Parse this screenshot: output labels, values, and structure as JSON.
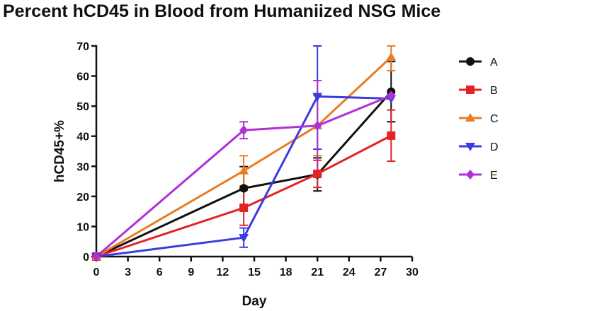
{
  "chart_data": {
    "type": "line",
    "title": "Percent hCD45 in Blood from Humaniized NSG Mice",
    "xlabel": "Day",
    "ylabel": "hCD45+%",
    "xlim": [
      0,
      30
    ],
    "ylim": [
      0,
      70
    ],
    "xticks": [
      0,
      3,
      6,
      9,
      12,
      15,
      18,
      21,
      24,
      27,
      30
    ],
    "yticks": [
      0,
      10,
      20,
      30,
      40,
      50,
      60,
      70
    ],
    "legend_position": "right",
    "series": [
      {
        "name": "A",
        "color": "#111111",
        "marker": "circle",
        "x": [
          0,
          14,
          21,
          28
        ],
        "y": [
          0,
          22.7,
          27.3,
          54.8
        ],
        "err": [
          0,
          7.2,
          5.5,
          10
        ]
      },
      {
        "name": "B",
        "color": "#e52222",
        "marker": "square",
        "x": [
          0,
          14,
          21,
          28
        ],
        "y": [
          0,
          16.2,
          27.5,
          40.2
        ],
        "err": [
          0,
          5.8,
          4.5,
          8.5
        ]
      },
      {
        "name": "C",
        "color": "#e87d23",
        "marker": "triangle-up",
        "x": [
          0,
          14,
          21,
          28
        ],
        "y": [
          0,
          28.5,
          43.5,
          66.3
        ],
        "err": [
          0,
          5,
          10,
          4.5
        ]
      },
      {
        "name": "D",
        "color": "#3a3be0",
        "marker": "triangle-down",
        "x": [
          0,
          14,
          21,
          28
        ],
        "y": [
          0,
          6.3,
          53.2,
          52.5
        ],
        "err": [
          0,
          3.2,
          17.5,
          0
        ]
      },
      {
        "name": "E",
        "color": "#b030d8",
        "marker": "diamond",
        "x": [
          0,
          14,
          21,
          28
        ],
        "y": [
          0,
          42,
          43.5,
          53.5
        ],
        "err": [
          0,
          2.8,
          15,
          0
        ]
      }
    ]
  }
}
